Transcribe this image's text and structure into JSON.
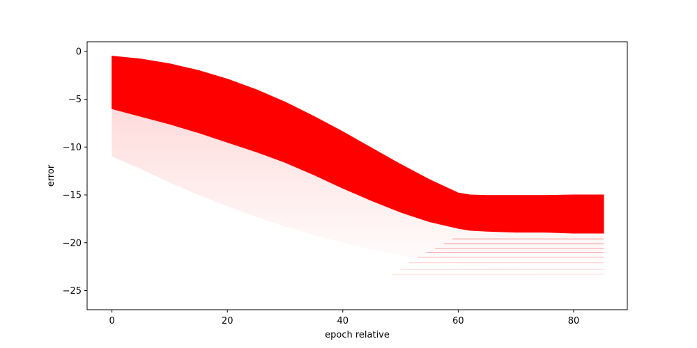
{
  "chart_data": {
    "type": "area",
    "xlabel": "epoch relative",
    "ylabel": "error",
    "xlim": [
      -4.3,
      89.3
    ],
    "ylim": [
      -27,
      1
    ],
    "xticks": [
      0,
      20,
      40,
      60,
      80
    ],
    "yticks": [
      0,
      -5,
      -10,
      -15,
      -20,
      -25
    ],
    "xtick_labels": [
      "0",
      "20",
      "40",
      "60",
      "80"
    ],
    "ytick_labels": [
      "0",
      "−5",
      "−10",
      "−15",
      "−20",
      "−25"
    ],
    "grid": false,
    "color": "#ff0000",
    "series": [
      {
        "band": "dense",
        "x": [
          0,
          5,
          10,
          15,
          20,
          25,
          30,
          35,
          40,
          45,
          50,
          55,
          60,
          62,
          65,
          70,
          75,
          80,
          85.2
        ],
        "upper": [
          -0.5,
          -0.8,
          -1.3,
          -2.0,
          -2.9,
          -4.0,
          -5.3,
          -6.8,
          -8.4,
          -10.1,
          -11.8,
          -13.4,
          -14.8,
          -15.0,
          -15.05,
          -15.05,
          -15.05,
          -15.0,
          -15.0
        ],
        "lower": [
          -6.0,
          -6.8,
          -7.6,
          -8.5,
          -9.5,
          -10.5,
          -11.6,
          -12.9,
          -14.3,
          -15.6,
          -16.8,
          -17.8,
          -18.5,
          -18.7,
          -18.8,
          -18.9,
          -18.9,
          -19.0,
          -19.0
        ]
      },
      {
        "band": "sparse",
        "x": [
          0,
          5,
          10,
          15,
          20,
          25,
          30,
          35,
          40,
          45,
          50,
          55,
          60,
          62,
          65,
          70,
          75,
          80,
          85.2
        ],
        "lower": [
          -11.0,
          -12.3,
          -13.7,
          -15.0,
          -16.2,
          -17.3,
          -18.3,
          -19.2,
          -20.0,
          -20.7,
          -21.3,
          -21.8,
          -22.2,
          -22.4,
          -22.7,
          -23.0,
          -23.2,
          -23.4,
          -23.5
        ]
      }
    ]
  }
}
